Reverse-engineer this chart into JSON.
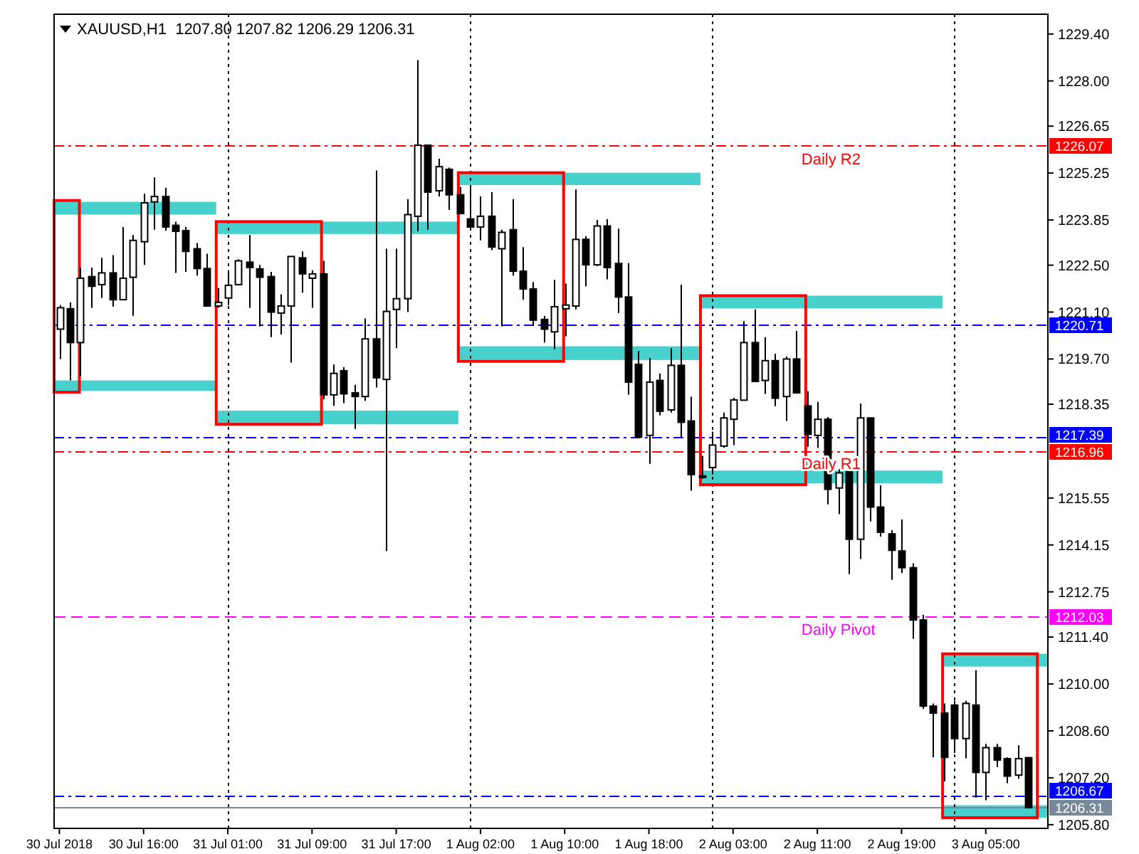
{
  "chart_data": {
    "type": "candlestick",
    "title": "XAUUSD,H1  1207.80 1207.82 1206.29 1206.31",
    "categories": [
      "30 Jul 2018",
      null,
      null,
      null,
      null,
      null,
      null,
      null,
      "30 Jul 16:00",
      null,
      null,
      null,
      null,
      null,
      null,
      null,
      "31 Jul 01:00",
      null,
      null,
      null,
      null,
      null,
      null,
      null,
      "31 Jul 09:00",
      null,
      null,
      null,
      null,
      null,
      null,
      null,
      "31 Jul 17:00",
      null,
      null,
      null,
      null,
      null,
      null,
      null,
      "1 Aug 02:00",
      null,
      null,
      null,
      null,
      null,
      null,
      null,
      "1 Aug 10:00",
      null,
      null,
      null,
      null,
      null,
      null,
      null,
      "1 Aug 18:00",
      null,
      null,
      null,
      null,
      null,
      null,
      null,
      "2 Aug 03:00",
      null,
      null,
      null,
      null,
      null,
      null,
      null,
      "2 Aug 11:00",
      null,
      null,
      null,
      null,
      null,
      null,
      null,
      "2 Aug 19:00",
      null,
      null,
      null,
      null,
      null,
      null,
      null,
      "3 Aug 05:00",
      null,
      null,
      null,
      null
    ],
    "ohlc": [
      [
        1220.59,
        1221.31,
        1219.7,
        1221.23
      ],
      [
        1221.2,
        1221.39,
        1219.06,
        1220.19
      ],
      [
        1220.19,
        1222.43,
        1219.19,
        1222.11
      ],
      [
        1222.16,
        1222.43,
        1221.23,
        1221.87
      ],
      [
        1221.92,
        1222.72,
        1221.52,
        1222.27
      ],
      [
        1222.27,
        1222.8,
        1221.26,
        1221.47
      ],
      [
        1221.47,
        1223.64,
        1221.47,
        1222.11
      ],
      [
        1222.14,
        1223.4,
        1220.99,
        1223.24
      ],
      [
        1223.2,
        1224.63,
        1222.51,
        1224.36
      ],
      [
        1224.39,
        1225.12,
        1223.56,
        1224.55
      ],
      [
        1224.55,
        1224.81,
        1223.53,
        1223.64
      ],
      [
        1223.69,
        1223.8,
        1222.27,
        1223.51
      ],
      [
        1223.53,
        1223.64,
        1222.3,
        1222.91
      ],
      [
        1222.99,
        1223.16,
        1222.19,
        1222.4
      ],
      [
        1222.4,
        1222.84,
        1221.28,
        1221.28
      ],
      [
        1221.28,
        1221.82,
        1221.23,
        1221.39
      ],
      [
        1221.52,
        1222.35,
        1221.31,
        1221.9
      ],
      [
        1221.92,
        1222.68,
        1221.92,
        1222.63
      ],
      [
        1222.59,
        1223.4,
        1221.23,
        1222.43
      ],
      [
        1222.39,
        1222.51,
        1220.67,
        1222.14
      ],
      [
        1222.16,
        1222.3,
        1220.35,
        1221.1
      ],
      [
        1221.07,
        1221.63,
        1220.43,
        1221.28
      ],
      [
        1221.28,
        1222.76,
        1219.59,
        1222.76
      ],
      [
        1222.72,
        1222.91,
        1221.68,
        1222.24
      ],
      [
        1222.11,
        1222.35,
        1221.23,
        1222.24
      ],
      [
        1222.24,
        1222.63,
        1218.5,
        1218.63
      ],
      [
        1218.63,
        1219.54,
        1218.3,
        1219.27
      ],
      [
        1219.35,
        1219.46,
        1218.38,
        1218.66
      ],
      [
        1218.69,
        1218.93,
        1217.61,
        1218.58
      ],
      [
        1218.58,
        1220.91,
        1218.45,
        1220.3
      ],
      [
        1220.3,
        1225.33,
        1218.85,
        1219.14
      ],
      [
        1219.09,
        1222.99,
        1213.97,
        1221.12
      ],
      [
        1221.18,
        1222.99,
        1220.02,
        1221.5
      ],
      [
        1221.5,
        1224.47,
        1221.1,
        1224.01
      ],
      [
        1223.96,
        1228.62,
        1223.51,
        1226.08
      ],
      [
        1226.08,
        1226.08,
        1223.56,
        1224.68
      ],
      [
        1224.72,
        1225.68,
        1224.55,
        1225.44
      ],
      [
        1225.36,
        1225.41,
        1224.15,
        1224.6
      ],
      [
        1224.6,
        1224.84,
        1224.04,
        1224.04
      ],
      [
        1223.88,
        1224.88,
        1223.56,
        1223.64
      ],
      [
        1223.64,
        1224.55,
        1223.24,
        1223.96
      ],
      [
        1223.96,
        1224.68,
        1222.95,
        1223.04
      ],
      [
        1222.99,
        1223.56,
        1220.67,
        1223.48
      ],
      [
        1223.56,
        1224.47,
        1222.19,
        1222.32
      ],
      [
        1222.32,
        1223.04,
        1221.47,
        1221.79
      ],
      [
        1221.79,
        1222.0,
        1220.7,
        1220.86
      ],
      [
        1220.88,
        1220.99,
        1220.19,
        1220.59
      ],
      [
        1220.51,
        1222.06,
        1219.99,
        1221.26
      ],
      [
        1221.2,
        1221.95,
        1220.38,
        1221.31
      ],
      [
        1221.28,
        1224.76,
        1221.18,
        1223.27
      ],
      [
        1223.27,
        1223.37,
        1221.87,
        1222.51
      ],
      [
        1222.51,
        1223.85,
        1222.47,
        1223.67
      ],
      [
        1223.67,
        1223.88,
        1222.08,
        1222.43
      ],
      [
        1222.55,
        1223.59,
        1221.07,
        1221.55
      ],
      [
        1221.55,
        1222.56,
        1218.63,
        1219.01
      ],
      [
        1219.54,
        1219.94,
        1217.37,
        1217.37
      ],
      [
        1217.42,
        1219.73,
        1216.57,
        1219.01
      ],
      [
        1219.06,
        1219.27,
        1218.02,
        1218.14
      ],
      [
        1218.18,
        1220.02,
        1218.1,
        1219.51
      ],
      [
        1219.51,
        1221.92,
        1217.37,
        1217.81
      ],
      [
        1217.85,
        1218.58,
        1215.77,
        1216.25
      ],
      [
        1216.19,
        1216.81,
        1216.13,
        1216.21
      ],
      [
        1216.46,
        1217.53,
        1216.25,
        1217.13
      ],
      [
        1217.1,
        1218.1,
        1217.05,
        1217.94
      ],
      [
        1217.9,
        1218.54,
        1217.13,
        1218.48
      ],
      [
        1218.47,
        1220.83,
        1218.47,
        1220.19
      ],
      [
        1220.19,
        1221.18,
        1219.03,
        1219.03
      ],
      [
        1219.06,
        1220.35,
        1218.66,
        1219.65
      ],
      [
        1219.65,
        1219.86,
        1218.29,
        1218.53
      ],
      [
        1218.58,
        1219.78,
        1217.85,
        1219.7
      ],
      [
        1219.7,
        1220.54,
        1218.69,
        1218.69
      ],
      [
        1218.3,
        1218.74,
        1217.08,
        1217.45
      ],
      [
        1217.42,
        1218.42,
        1217.05,
        1217.9
      ],
      [
        1217.9,
        1217.97,
        1215.36,
        1215.81
      ],
      [
        1215.85,
        1216.41,
        1215.07,
        1216.3
      ],
      [
        1216.33,
        1216.33,
        1213.28,
        1214.32
      ],
      [
        1214.32,
        1218.37,
        1213.73,
        1217.94
      ],
      [
        1217.94,
        1217.94,
        1214.85,
        1215.28
      ],
      [
        1215.28,
        1215.93,
        1214.4,
        1214.53
      ],
      [
        1214.48,
        1214.59,
        1213.11,
        1213.99
      ],
      [
        1213.97,
        1214.91,
        1213.31,
        1213.47
      ],
      [
        1213.47,
        1213.6,
        1211.35,
        1211.91
      ],
      [
        1211.91,
        1212.07,
        1209.26,
        1209.34
      ],
      [
        1209.34,
        1209.42,
        1207.81,
        1209.13
      ],
      [
        1209.13,
        1209.42,
        1207.09,
        1207.81
      ],
      [
        1209.37,
        1209.5,
        1207.94,
        1208.37
      ],
      [
        1208.37,
        1209.5,
        1207.78,
        1209.42
      ],
      [
        1209.37,
        1210.41,
        1206.61,
        1207.36
      ],
      [
        1207.36,
        1208.21,
        1206.53,
        1208.1
      ],
      [
        1208.1,
        1208.21,
        1207.52,
        1207.73
      ],
      [
        1207.77,
        1207.81,
        1207.04,
        1207.25
      ],
      [
        1207.28,
        1208.17,
        1207.17,
        1207.77
      ],
      [
        1207.8,
        1207.82,
        1206.29,
        1206.31
      ]
    ],
    "ylim": [
      1205.69,
      1229.99
    ],
    "yticks": [
      {
        "value": 1229.4,
        "label": "1229.40"
      },
      {
        "value": 1228,
        "label": "1228.00"
      },
      {
        "value": 1226.65,
        "label": "1226.65"
      },
      {
        "value": 1225.25,
        "label": "1225.25"
      },
      {
        "value": 1223.85,
        "label": "1223.85"
      },
      {
        "value": 1222.5,
        "label": "1222.50"
      },
      {
        "value": 1221.1,
        "label": "1221.10"
      },
      {
        "value": 1219.7,
        "label": "1219.70"
      },
      {
        "value": 1218.35,
        "label": "1218.35"
      },
      {
        "value": 1215.55,
        "label": "1215.55"
      },
      {
        "value": 1214.15,
        "label": "1214.15"
      },
      {
        "value": 1212.75,
        "label": "1212.75"
      },
      {
        "value": 1211.4,
        "label": "1211.40"
      },
      {
        "value": 1210,
        "label": "1210.00"
      },
      {
        "value": 1208.6,
        "label": "1208.60"
      },
      {
        "value": 1207.2,
        "label": "1207.20"
      },
      {
        "value": 1205.8,
        "label": "1205.80"
      }
    ],
    "ref_lines": [
      {
        "axis": "y",
        "value": 1226.07,
        "label": "1226.07",
        "color": "#ff0000",
        "line_style": "dashdot"
      },
      {
        "axis": "y",
        "value": 1220.71,
        "label": "1220.71",
        "color": "#0000ff",
        "line_style": "dashdot"
      },
      {
        "axis": "y",
        "value": 1217.39,
        "label": "1217.39",
        "color": "#0000ff",
        "line_style": "dashdot"
      },
      {
        "axis": "y",
        "value": 1216.96,
        "label": "1216.96",
        "color": "#ff0000",
        "line_style": "dashdot"
      },
      {
        "axis": "y",
        "value": 1212.03,
        "label": "1212.03",
        "color": "#ff00ff",
        "line_style": "dashed"
      },
      {
        "axis": "y",
        "value": 1206.67,
        "label": "1206.67",
        "color": "#0000ff",
        "line_style": "dashdot"
      },
      {
        "axis": "y",
        "value": 1206.31,
        "label": "1206.31",
        "color": "#778899",
        "line_style": "solid"
      }
    ],
    "grid": "x",
    "bands": [
      {
        "axis": "y",
        "from": 1224.01,
        "to": 1224.39,
        "color": "#48d1cc"
      },
      {
        "axis": "y",
        "from": 1218.75,
        "to": 1219.06,
        "color": "#48d1cc"
      },
      {
        "axis": "y",
        "from": 1223.43,
        "to": 1223.8,
        "color": "#48d1cc"
      },
      {
        "axis": "y",
        "from": 1217.75,
        "to": 1218.16,
        "color": "#48d1cc"
      },
      {
        "axis": "y",
        "from": 1224.89,
        "to": 1225.26,
        "color": "#48d1cc"
      },
      {
        "axis": "y",
        "from": 1219.67,
        "to": 1220.08,
        "color": "#48d1cc"
      },
      {
        "axis": "y",
        "from": 1221.21,
        "to": 1221.59,
        "color": "#48d1cc"
      },
      {
        "axis": "y",
        "from": 1215.99,
        "to": 1216.37,
        "color": "#48d1cc"
      },
      {
        "axis": "y",
        "from": 1210.52,
        "to": 1210.9,
        "color": "#48d1cc"
      },
      {
        "axis": "y",
        "from": 1206.01,
        "to": 1206.38,
        "color": "#48d1cc"
      }
    ],
    "annotations": [
      {
        "text": "Daily R2",
        "y": 1226.07
      },
      {
        "text": "Daily R1",
        "y": 1216.96
      },
      {
        "text": "Daily Pivot",
        "y": 1212.03
      }
    ]
  }
}
